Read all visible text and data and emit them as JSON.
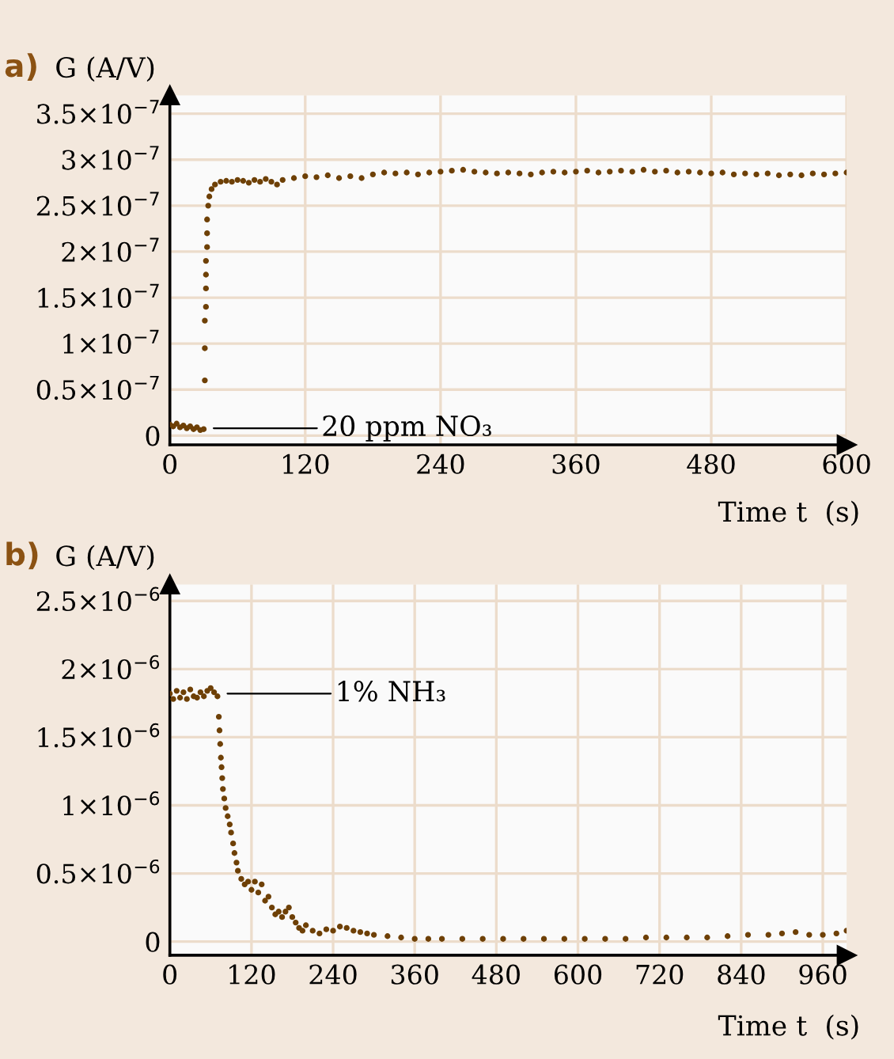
{
  "chart_data": [
    {
      "type": "scatter",
      "title": "a)",
      "ylabel": "G (A/V)",
      "xlabel": "Time t  (s)",
      "marker": "circle",
      "grid": true,
      "xlim": [
        0,
        600
      ],
      "xticks": [
        0,
        120,
        240,
        360,
        480,
        600
      ],
      "ylim": [
        -1e-08,
        3.7e-07
      ],
      "yticks": [
        0,
        {
          "value": 5e-08,
          "label": "0.5×10$^{−7}$"
        },
        {
          "value": 1e-07,
          "label": "1×10$^{−7}$"
        },
        {
          "value": 1.5e-07,
          "label": "1.5×10$^{−7}$"
        },
        {
          "value": 2e-07,
          "label": "2×10$^{−7}$"
        },
        {
          "value": 2.5e-07,
          "label": "2.5×10$^{−7}$"
        },
        {
          "value": 3e-07,
          "label": "3×10$^{−7}$"
        },
        {
          "value": 3.5e-07,
          "label": "3.5×10$^{−7}$"
        }
      ],
      "annotations": [
        {
          "text": "20 ppm NO₃",
          "x": 33,
          "y": 8e-09
        }
      ],
      "series": [
        {
          "color": "#6e4006",
          "x": [
            0,
            3,
            6,
            9,
            12,
            15,
            18,
            21,
            24,
            27,
            30,
            31,
            31,
            31,
            32,
            32,
            32,
            32,
            33,
            33,
            33,
            34,
            35,
            37,
            40,
            45,
            50,
            55,
            60,
            65,
            70,
            75,
            80,
            85,
            90,
            95,
            100,
            110,
            120,
            130,
            140,
            150,
            160,
            170,
            180,
            190,
            200,
            210,
            220,
            230,
            240,
            250,
            260,
            270,
            280,
            290,
            300,
            310,
            320,
            330,
            340,
            350,
            360,
            370,
            380,
            390,
            400,
            410,
            420,
            430,
            440,
            450,
            460,
            470,
            480,
            490,
            500,
            510,
            520,
            530,
            540,
            550,
            560,
            570,
            580,
            590,
            600
          ],
          "values": [
            1.2e-08,
            1e-08,
            1.3e-08,
            9e-09,
            1.1e-08,
            8e-09,
            1e-08,
            7e-09,
            9e-09,
            6e-09,
            7e-09,
            6e-08,
            9.5e-08,
            1.25e-07,
            1.4e-07,
            1.6e-07,
            1.75e-07,
            1.9e-07,
            2.05e-07,
            2.2e-07,
            2.35e-07,
            2.5e-07,
            2.6e-07,
            2.68e-07,
            2.73e-07,
            2.76e-07,
            2.77e-07,
            2.76e-07,
            2.78e-07,
            2.77e-07,
            2.75e-07,
            2.78e-07,
            2.76e-07,
            2.79e-07,
            2.76e-07,
            2.73e-07,
            2.78e-07,
            2.8e-07,
            2.82e-07,
            2.81e-07,
            2.83e-07,
            2.8e-07,
            2.82e-07,
            2.8e-07,
            2.84e-07,
            2.86e-07,
            2.85e-07,
            2.86e-07,
            2.84e-07,
            2.86e-07,
            2.87e-07,
            2.88e-07,
            2.89e-07,
            2.87e-07,
            2.86e-07,
            2.85e-07,
            2.86e-07,
            2.85e-07,
            2.84e-07,
            2.86e-07,
            2.87e-07,
            2.86e-07,
            2.87e-07,
            2.88e-07,
            2.86e-07,
            2.87e-07,
            2.88e-07,
            2.87e-07,
            2.89e-07,
            2.87e-07,
            2.88e-07,
            2.86e-07,
            2.87e-07,
            2.86e-07,
            2.85e-07,
            2.86e-07,
            2.84e-07,
            2.85e-07,
            2.84e-07,
            2.85e-07,
            2.83e-07,
            2.84e-07,
            2.83e-07,
            2.85e-07,
            2.84e-07,
            2.85e-07,
            2.86e-07
          ]
        }
      ]
    },
    {
      "type": "scatter",
      "title": "b)",
      "ylabel": "G (A/V)",
      "xlabel": "Time t  (s)",
      "marker": "circle",
      "grid": true,
      "xlim": [
        0,
        995
      ],
      "xticks": [
        0,
        120,
        240,
        360,
        480,
        600,
        720,
        840,
        960
      ],
      "ylim": [
        -1e-07,
        2.62e-06
      ],
      "yticks": [
        0,
        {
          "value": 5e-07,
          "label": "0.5×10$^{−6}$"
        },
        {
          "value": 1e-06,
          "label": "1×10$^{−6}$"
        },
        {
          "value": 1.5e-06,
          "label": "1.5×10$^{−6}$"
        },
        {
          "value": 2e-06,
          "label": "2×10$^{−6}$"
        },
        {
          "value": 2.5e-06,
          "label": "2.5×10$^{−6}$"
        }
      ],
      "annotations": [
        {
          "text": "1% NH₃",
          "x": 75,
          "y": 1.82e-06
        }
      ],
      "series": [
        {
          "color": "#6e4006",
          "x": [
            0,
            5,
            10,
            15,
            20,
            25,
            30,
            35,
            40,
            45,
            50,
            55,
            60,
            65,
            70,
            72,
            73,
            74,
            75,
            76,
            77,
            78,
            80,
            82,
            85,
            88,
            90,
            93,
            95,
            98,
            100,
            105,
            110,
            115,
            120,
            125,
            130,
            135,
            140,
            145,
            150,
            155,
            160,
            165,
            170,
            175,
            180,
            185,
            190,
            195,
            200,
            210,
            220,
            230,
            240,
            250,
            260,
            270,
            280,
            290,
            300,
            320,
            340,
            360,
            380,
            400,
            430,
            460,
            490,
            520,
            550,
            580,
            610,
            640,
            670,
            700,
            730,
            760,
            790,
            820,
            850,
            880,
            900,
            920,
            940,
            960,
            980,
            995
          ],
          "values": [
            1.82e-06,
            1.78e-06,
            1.84e-06,
            1.79e-06,
            1.83e-06,
            1.78e-06,
            1.85e-06,
            1.8e-06,
            1.79e-06,
            1.83e-06,
            1.8e-06,
            1.84e-06,
            1.86e-06,
            1.83e-06,
            1.8e-06,
            1.65e-06,
            1.55e-06,
            1.45e-06,
            1.35e-06,
            1.28e-06,
            1.2e-06,
            1.12e-06,
            1.05e-06,
            9.8e-07,
            9.2e-07,
            8.6e-07,
            8e-07,
            7.2e-07,
            6.5e-07,
            5.8e-07,
            5.2e-07,
            4.6e-07,
            4.2e-07,
            4.4e-07,
            3.8e-07,
            4.4e-07,
            3.6e-07,
            4.2e-07,
            3e-07,
            3.3e-07,
            2.5e-07,
            2e-07,
            2.2e-07,
            1.8e-07,
            2.2e-07,
            2.5e-07,
            1.8e-07,
            1.4e-07,
            1e-07,
            8e-08,
            1.2e-07,
            8e-08,
            6e-08,
            9e-08,
            8e-08,
            1.1e-07,
            1e-07,
            8e-08,
            7e-08,
            6e-08,
            5e-08,
            4e-08,
            3e-08,
            2e-08,
            2e-08,
            2e-08,
            2e-08,
            2e-08,
            2e-08,
            2e-08,
            2e-08,
            2e-08,
            2e-08,
            2e-08,
            2e-08,
            3e-08,
            3e-08,
            3e-08,
            3e-08,
            4e-08,
            5e-08,
            5e-08,
            6e-08,
            7e-08,
            5e-08,
            5e-08,
            6e-08,
            8e-08
          ]
        }
      ]
    }
  ]
}
